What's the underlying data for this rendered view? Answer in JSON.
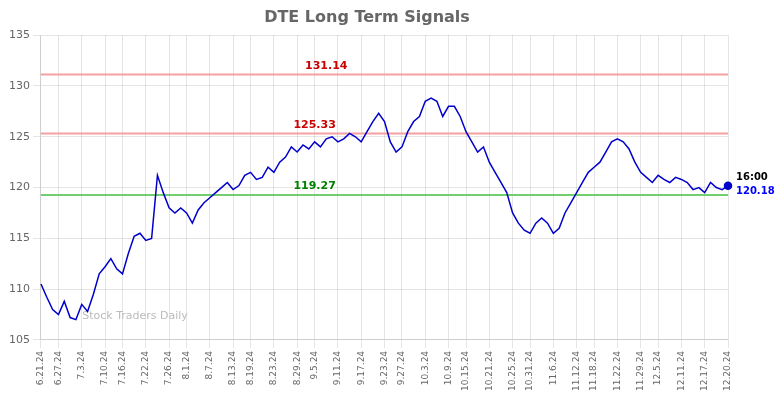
{
  "chart_data": {
    "type": "line",
    "title": "DTE Long Term Signals",
    "categories": [
      "6.21.24",
      null,
      null,
      "6.27.24",
      null,
      null,
      null,
      "7.3.24",
      null,
      null,
      null,
      "7.10.24",
      null,
      null,
      "7.16.24",
      null,
      null,
      null,
      "7.22.24",
      null,
      null,
      null,
      "7.26.24",
      null,
      null,
      "8.1.24",
      null,
      null,
      null,
      "8.7.24",
      null,
      null,
      null,
      "8.13.24",
      null,
      null,
      "8.19.24",
      null,
      null,
      null,
      "8.23.24",
      null,
      null,
      null,
      "8.29.24",
      null,
      null,
      "9.5.24",
      null,
      null,
      null,
      "9.11.24",
      null,
      null,
      null,
      "9.17.24",
      null,
      null,
      null,
      "9.23.24",
      null,
      null,
      "9.27.24",
      null,
      null,
      null,
      "10.3.24",
      null,
      null,
      null,
      "10.9.24",
      null,
      null,
      "10.15.24",
      null,
      null,
      null,
      "10.21.24",
      null,
      null,
      null,
      "10.25.24",
      null,
      null,
      "10.31.24",
      null,
      null,
      null,
      "11.6.24",
      null,
      null,
      null,
      "11.12.24",
      null,
      null,
      "11.18.24",
      null,
      null,
      null,
      "11.22.24",
      null,
      null,
      null,
      "11.29.24",
      null,
      null,
      "12.5.24",
      null,
      null,
      null,
      "12.11.24",
      null,
      null,
      null,
      "12.17.24",
      null,
      null,
      null,
      "12.20.24"
    ],
    "values": [
      110.5,
      109.2,
      108.0,
      107.5,
      108.8,
      107.2,
      107.0,
      108.5,
      107.8,
      109.5,
      111.5,
      112.2,
      113.0,
      112.0,
      111.5,
      113.5,
      115.2,
      115.5,
      114.8,
      115.0,
      121.2,
      119.5,
      118.0,
      117.5,
      118.0,
      117.5,
      116.5,
      117.8,
      118.5,
      119.0,
      119.5,
      120.0,
      120.5,
      119.8,
      120.2,
      121.2,
      121.5,
      120.8,
      121.0,
      122.0,
      121.5,
      122.5,
      123.0,
      124.0,
      123.5,
      124.2,
      123.8,
      124.5,
      124.0,
      124.8,
      125.0,
      124.5,
      124.8,
      125.33,
      125.0,
      124.5,
      125.5,
      126.5,
      127.3,
      126.5,
      124.5,
      123.5,
      124.0,
      125.5,
      126.5,
      127.0,
      128.5,
      128.8,
      128.5,
      127.0,
      128.0,
      128.0,
      127.0,
      125.5,
      124.5,
      123.5,
      124.0,
      122.5,
      121.5,
      120.5,
      119.5,
      117.5,
      116.5,
      115.8,
      115.5,
      116.5,
      117.0,
      116.5,
      115.5,
      116.0,
      117.5,
      118.5,
      119.5,
      120.5,
      121.5,
      122.0,
      122.5,
      123.5,
      124.5,
      124.8,
      124.5,
      123.8,
      122.5,
      121.5,
      121.0,
      120.5,
      121.2,
      120.8,
      120.5,
      121.0,
      120.8,
      120.5,
      119.8,
      120.0,
      119.5,
      120.5,
      120.0,
      119.8,
      120.18
    ],
    "color": "#0000cc",
    "ylim": [
      105,
      135
    ],
    "yticks": [
      105,
      110,
      115,
      120,
      125,
      130,
      135
    ],
    "grid": true,
    "hlines": [
      {
        "value": 131.14,
        "color": "#f4a0a0",
        "label": "131.14",
        "label_color": "#cc0000"
      },
      {
        "value": 125.33,
        "color": "#f4a0a0",
        "label": "125.33",
        "label_color": "#cc0000"
      },
      {
        "value": 119.27,
        "color": "#70d070",
        "label": "119.27",
        "label_color": "#008000"
      }
    ],
    "end_labels": [
      {
        "text": "16:00",
        "color": "#000000"
      },
      {
        "text": "120.18",
        "color": "#0000ff"
      }
    ],
    "watermark": "Stock Traders Daily"
  }
}
